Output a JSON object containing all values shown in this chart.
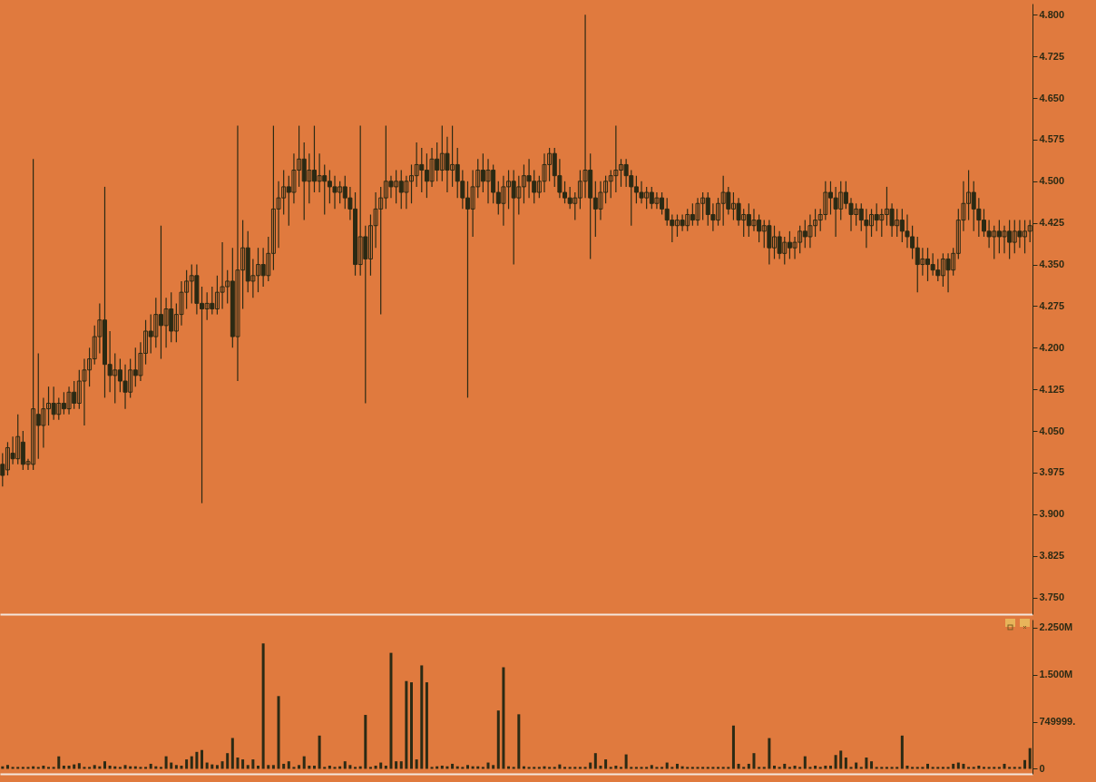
{
  "chart_data": [
    {
      "type": "candlestick",
      "color": "#2b2a14",
      "tick_labels": "y",
      "ylim": [
        3.72,
        4.82
      ],
      "yticks": [
        {
          "value": 3.75,
          "label": "3.750"
        },
        {
          "value": 3.825,
          "label": "3.825"
        },
        {
          "value": 3.9,
          "label": "3.900"
        },
        {
          "value": 3.975,
          "label": "3.975"
        },
        {
          "value": 4.05,
          "label": "4.050"
        },
        {
          "value": 4.125,
          "label": "4.125"
        },
        {
          "value": 4.2,
          "label": "4.200"
        },
        {
          "value": 4.275,
          "label": "4.275"
        },
        {
          "value": 4.35,
          "label": "4.350"
        },
        {
          "value": 4.425,
          "label": "4.425"
        },
        {
          "value": 4.5,
          "label": "4.500"
        },
        {
          "value": 4.575,
          "label": "4.575"
        },
        {
          "value": 4.65,
          "label": "4.650"
        },
        {
          "value": 4.725,
          "label": "4.725"
        },
        {
          "value": 4.8,
          "label": "4.800"
        }
      ],
      "categories": [
        null,
        null,
        null,
        null,
        null,
        null,
        null,
        null,
        null,
        null,
        null,
        null,
        null,
        null,
        null,
        null,
        null,
        null,
        null,
        null,
        null,
        null,
        null,
        null,
        null,
        null,
        null,
        null,
        null,
        null,
        null,
        null,
        null,
        null,
        null,
        null,
        null,
        null,
        null,
        null,
        null,
        null,
        null,
        null,
        null,
        null,
        null,
        null,
        null,
        null,
        null,
        null,
        null,
        null,
        null,
        null,
        null,
        null,
        null,
        null,
        null,
        null,
        null,
        null,
        null,
        null,
        null,
        null,
        null,
        null,
        null,
        null,
        null,
        null,
        null,
        null,
        null,
        null,
        null,
        null,
        null,
        null,
        null,
        null,
        null,
        null,
        null,
        null,
        null,
        null,
        null,
        null,
        null,
        null,
        null,
        null,
        null,
        null,
        null,
        null,
        null,
        null,
        null,
        null,
        null,
        null,
        null,
        null,
        null,
        null,
        null,
        null,
        null,
        null,
        null,
        null,
        null,
        null,
        null,
        null,
        null,
        null,
        null,
        null,
        null,
        null,
        null,
        null,
        null,
        null,
        null,
        null,
        null,
        null,
        null,
        null,
        null,
        null,
        null,
        null,
        null,
        null,
        null,
        null,
        null,
        null,
        null,
        null,
        null,
        null,
        null,
        null,
        null,
        null,
        null,
        null,
        null,
        null,
        null,
        null,
        null,
        null,
        null,
        null,
        null,
        null,
        null,
        null,
        null,
        null,
        null,
        null,
        null,
        null,
        null,
        null,
        null,
        null,
        null,
        null,
        null,
        null,
        null,
        null,
        null,
        null,
        null,
        null,
        null,
        null,
        null,
        null,
        null,
        null,
        null,
        null,
        null,
        null,
        null,
        null,
        null,
        null
      ],
      "ohlc": [
        [
          3.99,
          4.01,
          3.95,
          3.97
        ],
        [
          3.98,
          4.03,
          3.97,
          4.02
        ],
        [
          4.01,
          4.04,
          3.99,
          4.0
        ],
        [
          4.0,
          4.08,
          3.99,
          4.04
        ],
        [
          4.03,
          4.05,
          3.98,
          3.99
        ],
        [
          3.99,
          4.0,
          3.98,
          3.995
        ],
        [
          3.99,
          4.54,
          3.98,
          4.09
        ],
        [
          4.08,
          4.19,
          4.0,
          4.06
        ],
        [
          4.06,
          4.11,
          4.02,
          4.09
        ],
        [
          4.09,
          4.13,
          4.06,
          4.1
        ],
        [
          4.1,
          4.13,
          4.07,
          4.08
        ],
        [
          4.08,
          4.11,
          4.07,
          4.1
        ],
        [
          4.1,
          4.12,
          4.08,
          4.09
        ],
        [
          4.09,
          4.13,
          4.08,
          4.12
        ],
        [
          4.12,
          4.14,
          4.09,
          4.1
        ],
        [
          4.1,
          4.16,
          4.09,
          4.14
        ],
        [
          4.14,
          4.18,
          4.06,
          4.16
        ],
        [
          4.16,
          4.2,
          4.13,
          4.18
        ],
        [
          4.18,
          4.24,
          4.17,
          4.22
        ],
        [
          4.22,
          4.28,
          4.19,
          4.25
        ],
        [
          4.25,
          4.49,
          4.11,
          4.17
        ],
        [
          4.17,
          4.23,
          4.12,
          4.15
        ],
        [
          4.15,
          4.19,
          4.1,
          4.16
        ],
        [
          4.16,
          4.18,
          4.12,
          4.14
        ],
        [
          4.14,
          4.17,
          4.09,
          4.12
        ],
        [
          4.12,
          4.18,
          4.11,
          4.16
        ],
        [
          4.16,
          4.2,
          4.13,
          4.15
        ],
        [
          4.15,
          4.21,
          4.14,
          4.19
        ],
        [
          4.19,
          4.25,
          4.17,
          4.23
        ],
        [
          4.23,
          4.26,
          4.19,
          4.22
        ],
        [
          4.22,
          4.29,
          4.2,
          4.26
        ],
        [
          4.26,
          4.42,
          4.18,
          4.24
        ],
        [
          4.24,
          4.29,
          4.2,
          4.27
        ],
        [
          4.27,
          4.3,
          4.21,
          4.23
        ],
        [
          4.23,
          4.28,
          4.21,
          4.26
        ],
        [
          4.26,
          4.32,
          4.24,
          4.3
        ],
        [
          4.3,
          4.34,
          4.27,
          4.32
        ],
        [
          4.32,
          4.35,
          4.28,
          4.33
        ],
        [
          4.33,
          4.35,
          4.26,
          4.28
        ],
        [
          4.28,
          4.31,
          3.92,
          4.27
        ],
        [
          4.27,
          4.3,
          4.25,
          4.28
        ],
        [
          4.28,
          4.31,
          4.26,
          4.27
        ],
        [
          4.27,
          4.33,
          4.26,
          4.3
        ],
        [
          4.3,
          4.39,
          4.27,
          4.31
        ],
        [
          4.31,
          4.34,
          4.28,
          4.32
        ],
        [
          4.32,
          4.38,
          4.2,
          4.22
        ],
        [
          4.22,
          4.6,
          4.14,
          4.34
        ],
        [
          4.34,
          4.43,
          4.27,
          4.38
        ],
        [
          4.38,
          4.41,
          4.3,
          4.32
        ],
        [
          4.32,
          4.36,
          4.29,
          4.33
        ],
        [
          4.33,
          4.38,
          4.3,
          4.35
        ],
        [
          4.35,
          4.38,
          4.31,
          4.33
        ],
        [
          4.33,
          4.4,
          4.32,
          4.37
        ],
        [
          4.37,
          4.6,
          4.34,
          4.45
        ],
        [
          4.45,
          4.5,
          4.38,
          4.47
        ],
        [
          4.47,
          4.52,
          4.44,
          4.49
        ],
        [
          4.49,
          4.51,
          4.42,
          4.48
        ],
        [
          4.48,
          4.55,
          4.46,
          4.52
        ],
        [
          4.52,
          4.6,
          4.49,
          4.54
        ],
        [
          4.54,
          4.57,
          4.43,
          4.5
        ],
        [
          4.5,
          4.55,
          4.46,
          4.52
        ],
        [
          4.52,
          4.6,
          4.48,
          4.5
        ],
        [
          4.5,
          4.55,
          4.48,
          4.51
        ],
        [
          4.51,
          4.53,
          4.44,
          4.5
        ],
        [
          4.5,
          4.52,
          4.46,
          4.49
        ],
        [
          4.49,
          4.51,
          4.45,
          4.48
        ],
        [
          4.48,
          4.5,
          4.46,
          4.49
        ],
        [
          4.49,
          4.51,
          4.45,
          4.47
        ],
        [
          4.47,
          4.49,
          4.43,
          4.45
        ],
        [
          4.45,
          4.48,
          4.33,
          4.35
        ],
        [
          4.35,
          4.6,
          4.33,
          4.4
        ],
        [
          4.4,
          4.42,
          4.1,
          4.36
        ],
        [
          4.36,
          4.44,
          4.33,
          4.42
        ],
        [
          4.42,
          4.48,
          4.38,
          4.45
        ],
        [
          4.45,
          4.49,
          4.26,
          4.47
        ],
        [
          4.47,
          4.6,
          4.45,
          4.5
        ],
        [
          4.5,
          4.51,
          4.47,
          4.49
        ],
        [
          4.49,
          4.52,
          4.46,
          4.5
        ],
        [
          4.5,
          4.52,
          4.45,
          4.48
        ],
        [
          4.48,
          4.51,
          4.45,
          4.5
        ],
        [
          4.5,
          4.53,
          4.46,
          4.51
        ],
        [
          4.51,
          4.57,
          4.49,
          4.53
        ],
        [
          4.53,
          4.56,
          4.48,
          4.52
        ],
        [
          4.52,
          4.55,
          4.47,
          4.5
        ],
        [
          4.5,
          4.56,
          4.49,
          4.54
        ],
        [
          4.54,
          4.57,
          4.5,
          4.52
        ],
        [
          4.52,
          4.6,
          4.5,
          4.55
        ],
        [
          4.55,
          4.58,
          4.48,
          4.52
        ],
        [
          4.52,
          4.6,
          4.49,
          4.53
        ],
        [
          4.53,
          4.56,
          4.47,
          4.5
        ],
        [
          4.5,
          4.52,
          4.45,
          4.47
        ],
        [
          4.47,
          4.5,
          4.11,
          4.45
        ],
        [
          4.45,
          4.52,
          4.4,
          4.49
        ],
        [
          4.49,
          4.54,
          4.47,
          4.52
        ],
        [
          4.52,
          4.55,
          4.48,
          4.5
        ],
        [
          4.5,
          4.54,
          4.46,
          4.52
        ],
        [
          4.52,
          4.53,
          4.46,
          4.48
        ],
        [
          4.48,
          4.5,
          4.44,
          4.46
        ],
        [
          4.46,
          4.51,
          4.42,
          4.49
        ],
        [
          4.49,
          4.52,
          4.45,
          4.5
        ],
        [
          4.5,
          4.52,
          4.35,
          4.47
        ],
        [
          4.47,
          4.51,
          4.44,
          4.49
        ],
        [
          4.49,
          4.53,
          4.46,
          4.51
        ],
        [
          4.51,
          4.54,
          4.47,
          4.5
        ],
        [
          4.5,
          4.52,
          4.46,
          4.48
        ],
        [
          4.48,
          4.51,
          4.47,
          4.5
        ],
        [
          4.5,
          4.55,
          4.48,
          4.53
        ],
        [
          4.53,
          4.56,
          4.5,
          4.55
        ],
        [
          4.55,
          4.56,
          4.49,
          4.51
        ],
        [
          4.51,
          4.54,
          4.47,
          4.48
        ],
        [
          4.48,
          4.5,
          4.46,
          4.47
        ],
        [
          4.47,
          4.49,
          4.45,
          4.46
        ],
        [
          4.46,
          4.48,
          4.43,
          4.47
        ],
        [
          4.47,
          4.52,
          4.45,
          4.5
        ],
        [
          4.5,
          4.8,
          4.47,
          4.52
        ],
        [
          4.52,
          4.55,
          4.36,
          4.47
        ],
        [
          4.47,
          4.5,
          4.4,
          4.45
        ],
        [
          4.45,
          4.5,
          4.43,
          4.48
        ],
        [
          4.48,
          4.51,
          4.46,
          4.5
        ],
        [
          4.5,
          4.52,
          4.47,
          4.51
        ],
        [
          4.51,
          4.6,
          4.48,
          4.52
        ],
        [
          4.52,
          4.54,
          4.49,
          4.53
        ],
        [
          4.53,
          4.54,
          4.49,
          4.51
        ],
        [
          4.51,
          4.52,
          4.42,
          4.49
        ],
        [
          4.49,
          4.51,
          4.46,
          4.48
        ],
        [
          4.48,
          4.5,
          4.46,
          4.47
        ],
        [
          4.47,
          4.49,
          4.45,
          4.48
        ],
        [
          4.48,
          4.49,
          4.45,
          4.46
        ],
        [
          4.46,
          4.48,
          4.45,
          4.47
        ],
        [
          4.47,
          4.48,
          4.44,
          4.45
        ],
        [
          4.45,
          4.47,
          4.42,
          4.43
        ],
        [
          4.43,
          4.44,
          4.39,
          4.42
        ],
        [
          4.42,
          4.44,
          4.4,
          4.43
        ],
        [
          4.43,
          4.44,
          4.41,
          4.42
        ],
        [
          4.42,
          4.45,
          4.41,
          4.44
        ],
        [
          4.44,
          4.46,
          4.42,
          4.43
        ],
        [
          4.43,
          4.47,
          4.42,
          4.46
        ],
        [
          4.46,
          4.48,
          4.43,
          4.47
        ],
        [
          4.47,
          4.48,
          4.42,
          4.44
        ],
        [
          4.44,
          4.46,
          4.41,
          4.43
        ],
        [
          4.43,
          4.47,
          4.42,
          4.46
        ],
        [
          4.46,
          4.51,
          4.42,
          4.48
        ],
        [
          4.48,
          4.49,
          4.44,
          4.45
        ],
        [
          4.45,
          4.48,
          4.43,
          4.46
        ],
        [
          4.46,
          4.47,
          4.42,
          4.43
        ],
        [
          4.43,
          4.45,
          4.4,
          4.44
        ],
        [
          4.44,
          4.46,
          4.4,
          4.42
        ],
        [
          4.42,
          4.45,
          4.41,
          4.43
        ],
        [
          4.43,
          4.44,
          4.39,
          4.41
        ],
        [
          4.41,
          4.43,
          4.38,
          4.42
        ],
        [
          4.42,
          4.43,
          4.35,
          4.38
        ],
        [
          4.38,
          4.42,
          4.36,
          4.4
        ],
        [
          4.4,
          4.41,
          4.36,
          4.37
        ],
        [
          4.37,
          4.4,
          4.35,
          4.39
        ],
        [
          4.39,
          4.41,
          4.36,
          4.38
        ],
        [
          4.38,
          4.4,
          4.36,
          4.39
        ],
        [
          4.39,
          4.42,
          4.37,
          4.41
        ],
        [
          4.41,
          4.43,
          4.38,
          4.4
        ],
        [
          4.4,
          4.44,
          4.38,
          4.42
        ],
        [
          4.42,
          4.45,
          4.4,
          4.43
        ],
        [
          4.43,
          4.45,
          4.41,
          4.44
        ],
        [
          4.44,
          4.5,
          4.43,
          4.48
        ],
        [
          4.48,
          4.5,
          4.44,
          4.47
        ],
        [
          4.47,
          4.49,
          4.4,
          4.45
        ],
        [
          4.45,
          4.5,
          4.43,
          4.48
        ],
        [
          4.48,
          4.5,
          4.45,
          4.46
        ],
        [
          4.46,
          4.47,
          4.41,
          4.44
        ],
        [
          4.44,
          4.46,
          4.42,
          4.45
        ],
        [
          4.45,
          4.46,
          4.41,
          4.43
        ],
        [
          4.43,
          4.45,
          4.38,
          4.42
        ],
        [
          4.42,
          4.45,
          4.4,
          4.44
        ],
        [
          4.44,
          4.46,
          4.41,
          4.43
        ],
        [
          4.43,
          4.45,
          4.4,
          4.44
        ],
        [
          4.44,
          4.49,
          4.42,
          4.45
        ],
        [
          4.45,
          4.46,
          4.4,
          4.42
        ],
        [
          4.42,
          4.45,
          4.4,
          4.43
        ],
        [
          4.43,
          4.45,
          4.39,
          4.41
        ],
        [
          4.41,
          4.44,
          4.38,
          4.4
        ],
        [
          4.4,
          4.42,
          4.36,
          4.38
        ],
        [
          4.38,
          4.4,
          4.3,
          4.35
        ],
        [
          4.35,
          4.38,
          4.33,
          4.36
        ],
        [
          4.36,
          4.38,
          4.32,
          4.35
        ],
        [
          4.35,
          4.37,
          4.33,
          4.34
        ],
        [
          4.34,
          4.36,
          4.32,
          4.33
        ],
        [
          4.33,
          4.37,
          4.31,
          4.36
        ],
        [
          4.36,
          4.37,
          4.3,
          4.34
        ],
        [
          4.34,
          4.38,
          4.33,
          4.37
        ],
        [
          4.37,
          4.45,
          4.36,
          4.43
        ],
        [
          4.43,
          4.5,
          4.41,
          4.46
        ],
        [
          4.46,
          4.52,
          4.43,
          4.48
        ],
        [
          4.48,
          4.5,
          4.41,
          4.45
        ],
        [
          4.45,
          4.47,
          4.4,
          4.43
        ],
        [
          4.43,
          4.45,
          4.4,
          4.41
        ],
        [
          4.41,
          4.43,
          4.38,
          4.4
        ],
        [
          4.4,
          4.42,
          4.36,
          4.41
        ],
        [
          4.41,
          4.43,
          4.37,
          4.4
        ],
        [
          4.4,
          4.42,
          4.37,
          4.41
        ],
        [
          4.41,
          4.43,
          4.36,
          4.39
        ],
        [
          4.39,
          4.43,
          4.37,
          4.41
        ],
        [
          4.41,
          4.43,
          4.38,
          4.4
        ],
        [
          4.4,
          4.43,
          4.37,
          4.41
        ],
        [
          4.41,
          4.43,
          4.39,
          4.42
        ]
      ]
    },
    {
      "type": "bar",
      "color": "#2b2a14",
      "tick_labels": "y",
      "ylim": [
        -80000,
        2380000
      ],
      "yticks": [
        0,
        {
          "value": 749999,
          "label": "749999."
        },
        {
          "value": 1500000,
          "label": "1.500M"
        },
        {
          "value": 2250000,
          "label": "2.250M"
        }
      ],
      "categories": [
        null,
        null,
        null,
        null,
        null,
        null,
        null,
        null,
        null,
        null,
        null,
        null,
        null,
        null,
        null,
        null,
        null,
        null,
        null,
        null,
        null,
        null,
        null,
        null,
        null,
        null,
        null,
        null,
        null,
        null,
        null,
        null,
        null,
        null,
        null,
        null,
        null,
        null,
        null,
        null,
        null,
        null,
        null,
        null,
        null,
        null,
        null,
        null,
        null,
        null,
        null,
        null,
        null,
        null,
        null,
        null,
        null,
        null,
        null,
        null,
        null,
        null,
        null,
        null,
        null,
        null,
        null,
        null,
        null,
        null,
        null,
        null,
        null,
        null,
        null,
        null,
        null,
        null,
        null,
        null,
        null,
        null,
        null,
        null,
        null,
        null,
        null,
        null,
        null,
        null,
        null,
        null,
        null,
        null,
        null,
        null,
        null,
        null,
        null,
        null,
        null,
        null,
        null,
        null,
        null,
        null,
        null,
        null,
        null,
        null,
        null,
        null,
        null,
        null,
        null,
        null,
        null,
        null,
        null,
        null,
        null,
        null,
        null,
        null,
        null,
        null,
        null,
        null,
        null,
        null,
        null,
        null,
        null,
        null,
        null,
        null,
        null,
        null,
        null,
        null,
        null,
        null,
        null,
        null,
        null,
        null,
        null,
        null,
        null,
        null,
        null,
        null,
        null,
        null,
        null,
        null,
        null,
        null,
        null,
        null,
        null,
        null,
        null,
        null,
        null,
        null,
        null,
        null,
        null,
        null,
        null,
        null,
        null,
        null,
        null,
        null,
        null,
        null,
        null,
        null,
        null,
        null,
        null,
        null,
        null,
        null,
        null,
        null,
        null,
        null,
        null,
        null,
        null,
        null,
        null,
        null,
        null,
        null,
        null,
        null,
        null,
        null
      ],
      "values": [
        40000,
        60000,
        30000,
        30000,
        30000,
        30000,
        40000,
        30000,
        50000,
        30000,
        30000,
        200000,
        50000,
        50000,
        70000,
        90000,
        30000,
        30000,
        60000,
        40000,
        120000,
        50000,
        40000,
        30000,
        60000,
        40000,
        40000,
        30000,
        30000,
        80000,
        40000,
        30000,
        200000,
        100000,
        60000,
        50000,
        150000,
        200000,
        270000,
        300000,
        100000,
        70000,
        60000,
        120000,
        250000,
        490000,
        180000,
        150000,
        60000,
        150000,
        50000,
        2000000,
        60000,
        60000,
        1160000,
        80000,
        120000,
        30000,
        60000,
        200000,
        50000,
        50000,
        530000,
        30000,
        50000,
        30000,
        40000,
        120000,
        60000,
        30000,
        40000,
        860000,
        30000,
        50000,
        100000,
        50000,
        1850000,
        120000,
        120000,
        1400000,
        1380000,
        150000,
        1650000,
        1380000,
        30000,
        40000,
        50000,
        40000,
        80000,
        40000,
        30000,
        60000,
        40000,
        40000,
        30000,
        100000,
        60000,
        930000,
        1620000,
        40000,
        30000,
        870000,
        40000,
        30000,
        30000,
        30000,
        40000,
        30000,
        30000,
        70000,
        30000,
        30000,
        30000,
        30000,
        30000,
        100000,
        250000,
        50000,
        150000,
        30000,
        50000,
        30000,
        230000,
        30000,
        30000,
        30000,
        30000,
        60000,
        30000,
        30000,
        100000,
        30000,
        80000,
        40000,
        30000,
        30000,
        30000,
        30000,
        30000,
        30000,
        30000,
        30000,
        30000,
        690000,
        80000,
        30000,
        80000,
        250000,
        30000,
        30000,
        490000,
        50000,
        30000,
        80000,
        30000,
        50000,
        30000,
        200000,
        30000,
        50000,
        30000,
        50000,
        50000,
        220000,
        290000,
        180000,
        30000,
        100000,
        30000,
        180000,
        120000,
        30000,
        30000,
        30000,
        30000,
        30000,
        530000,
        50000,
        30000,
        30000,
        30000,
        80000,
        30000,
        30000,
        30000,
        30000,
        80000,
        100000,
        80000,
        30000,
        30000,
        50000,
        30000,
        30000,
        30000,
        30000,
        80000,
        30000,
        30000,
        30000,
        140000,
        330000
      ]
    }
  ]
}
